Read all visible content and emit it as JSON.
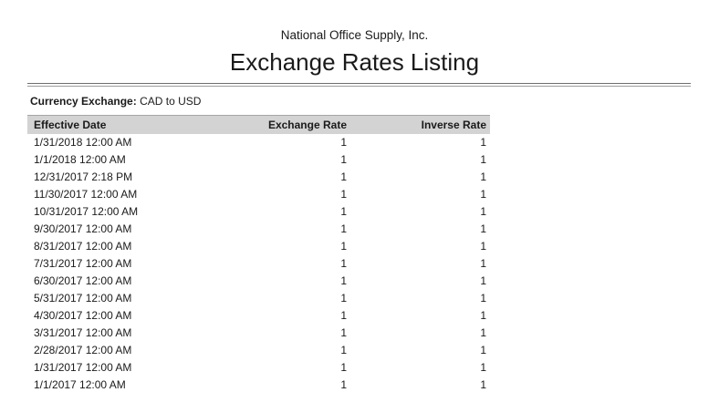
{
  "report": {
    "company": "National Office Supply, Inc.",
    "title": "Exchange Rates Listing"
  },
  "filter": {
    "label": "Currency Exchange:",
    "value": "CAD to USD"
  },
  "table": {
    "columns": [
      "Effective Date",
      "Exchange Rate",
      "Inverse Rate"
    ],
    "rows": [
      {
        "date": "1/31/2018 12:00 AM",
        "rate": "1",
        "inverse": "1"
      },
      {
        "date": "1/1/2018 12:00 AM",
        "rate": "1",
        "inverse": "1"
      },
      {
        "date": "12/31/2017 2:18 PM",
        "rate": "1",
        "inverse": "1"
      },
      {
        "date": "11/30/2017 12:00 AM",
        "rate": "1",
        "inverse": "1"
      },
      {
        "date": "10/31/2017 12:00 AM",
        "rate": "1",
        "inverse": "1"
      },
      {
        "date": "9/30/2017 12:00 AM",
        "rate": "1",
        "inverse": "1"
      },
      {
        "date": "8/31/2017 12:00 AM",
        "rate": "1",
        "inverse": "1"
      },
      {
        "date": "7/31/2017 12:00 AM",
        "rate": "1",
        "inverse": "1"
      },
      {
        "date": "6/30/2017 12:00 AM",
        "rate": "1",
        "inverse": "1"
      },
      {
        "date": "5/31/2017 12:00 AM",
        "rate": "1",
        "inverse": "1"
      },
      {
        "date": "4/30/2017 12:00 AM",
        "rate": "1",
        "inverse": "1"
      },
      {
        "date": "3/31/2017 12:00 AM",
        "rate": "1",
        "inverse": "1"
      },
      {
        "date": "2/28/2017 12:00 AM",
        "rate": "1",
        "inverse": "1"
      },
      {
        "date": "1/31/2017 12:00 AM",
        "rate": "1",
        "inverse": "1"
      },
      {
        "date": "1/1/2017 12:00 AM",
        "rate": "1",
        "inverse": "1"
      }
    ]
  },
  "colors": {
    "header_bg": "#d3d3d3",
    "rule_dark": "#6f6f6f",
    "rule_light": "#9c9c9c",
    "text": "#1a1a1a"
  }
}
